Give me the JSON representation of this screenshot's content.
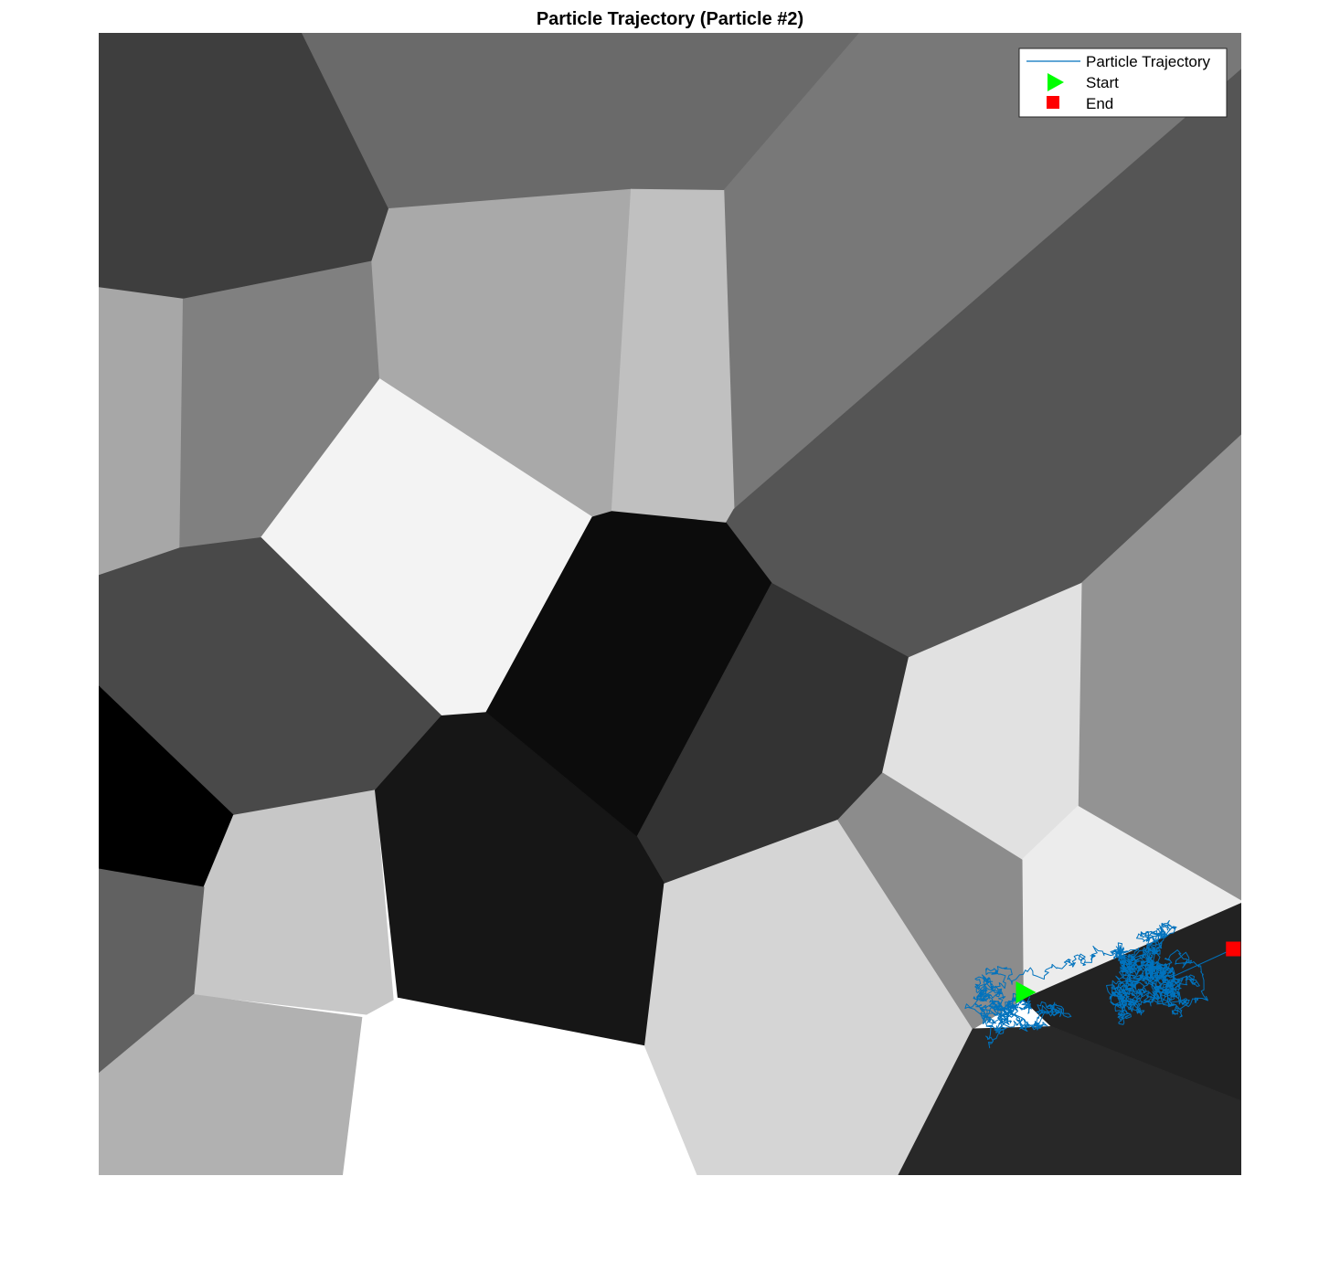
{
  "chart_data": {
    "type": "line",
    "title": "Particle Trajectory (Particle #2)",
    "xlabel": "",
    "ylabel": "",
    "xlim": [
      0,
      1
    ],
    "ylim": [
      0,
      1
    ],
    "axes_visible": false,
    "grid": false,
    "background": "grayscale Voronoi grain map",
    "legend_placement": "top-right",
    "colors": {
      "trajectory": "#0072BD",
      "start": "#00FF00",
      "end": "#FF0000"
    },
    "series": [
      {
        "name": "Particle Trajectory",
        "style": "line",
        "walk_seed": 2
      },
      {
        "name": "Start",
        "style": "triangle-right-marker",
        "x": 0.81,
        "y": 0.16
      },
      {
        "name": "End",
        "style": "square-marker",
        "x": 0.993,
        "y": 0.198
      }
    ],
    "grains": [
      {
        "shade": "#3e3e3e",
        "pts": [
          [
            0,
            1
          ],
          [
            0.178,
            1
          ],
          [
            0.254,
            0.846
          ],
          [
            0.239,
            0.8
          ],
          [
            0.074,
            0.767
          ],
          [
            0,
            0.777
          ]
        ]
      },
      {
        "shade": "#6a6a6a",
        "pts": [
          [
            0.178,
            1
          ],
          [
            0.666,
            1
          ],
          [
            0.547,
            0.862
          ],
          [
            0.456,
            0.862
          ],
          [
            0.254,
            0.846
          ]
        ]
      },
      {
        "shade": "#787878",
        "pts": [
          [
            0.666,
            1
          ],
          [
            1,
            1
          ],
          [
            1,
            0.968
          ],
          [
            0.556,
            0.583
          ],
          [
            0.547,
            0.862
          ]
        ]
      },
      {
        "shade": "#a7a7a7",
        "pts": [
          [
            0,
            0.777
          ],
          [
            0.074,
            0.767
          ],
          [
            0.071,
            0.549
          ],
          [
            0,
            0.525
          ]
        ]
      },
      {
        "shade": "#808080",
        "pts": [
          [
            0.074,
            0.767
          ],
          [
            0.239,
            0.8
          ],
          [
            0.246,
            0.697
          ],
          [
            0.142,
            0.558
          ],
          [
            0.071,
            0.549
          ]
        ]
      },
      {
        "shade": "#a9a9a9",
        "pts": [
          [
            0.254,
            0.846
          ],
          [
            0.466,
            0.863
          ],
          [
            0.449,
            0.581
          ],
          [
            0.432,
            0.576
          ],
          [
            0.246,
            0.697
          ],
          [
            0.239,
            0.8
          ]
        ]
      },
      {
        "shade": "#c0c0c0",
        "pts": [
          [
            0.466,
            0.863
          ],
          [
            0.547,
            0.862
          ],
          [
            0.556,
            0.583
          ],
          [
            0.549,
            0.571
          ],
          [
            0.449,
            0.581
          ]
        ]
      },
      {
        "shade": "#555555",
        "pts": [
          [
            1,
            0.968
          ],
          [
            1,
            0.648
          ],
          [
            0.86,
            0.518
          ],
          [
            0.709,
            0.453
          ],
          [
            0.589,
            0.518
          ],
          [
            0.549,
            0.571
          ],
          [
            0.556,
            0.583
          ]
        ]
      },
      {
        "shade": "#939393",
        "pts": [
          [
            1,
            0.648
          ],
          [
            1,
            0.24
          ],
          [
            0.857,
            0.323
          ],
          [
            0.86,
            0.518
          ]
        ]
      },
      {
        "shade": "#f3f3f3",
        "pts": [
          [
            0.246,
            0.697
          ],
          [
            0.432,
            0.576
          ],
          [
            0.339,
            0.405
          ],
          [
            0.3,
            0.402
          ],
          [
            0.142,
            0.558
          ]
        ]
      },
      {
        "shade": "#0c0c0c",
        "pts": [
          [
            0.432,
            0.576
          ],
          [
            0.449,
            0.581
          ],
          [
            0.549,
            0.571
          ],
          [
            0.589,
            0.518
          ],
          [
            0.471,
            0.296
          ],
          [
            0.339,
            0.405
          ]
        ]
      },
      {
        "shade": "#333333",
        "pts": [
          [
            0.589,
            0.518
          ],
          [
            0.709,
            0.453
          ],
          [
            0.686,
            0.352
          ],
          [
            0.647,
            0.311
          ],
          [
            0.495,
            0.255
          ],
          [
            0.471,
            0.296
          ]
        ]
      },
      {
        "shade": "#e1e1e1",
        "pts": [
          [
            0.709,
            0.453
          ],
          [
            0.86,
            0.518
          ],
          [
            0.857,
            0.323
          ],
          [
            0.808,
            0.276
          ],
          [
            0.686,
            0.352
          ]
        ]
      },
      {
        "shade": "#ececec",
        "pts": [
          [
            0.857,
            0.323
          ],
          [
            1,
            0.24
          ],
          [
            1,
            0.238
          ],
          [
            0.809,
            0.154
          ],
          [
            0.808,
            0.276
          ]
        ]
      },
      {
        "shade": "#494949",
        "pts": [
          [
            0,
            0.525
          ],
          [
            0.071,
            0.549
          ],
          [
            0.142,
            0.558
          ],
          [
            0.3,
            0.402
          ],
          [
            0.242,
            0.337
          ],
          [
            0.118,
            0.315
          ],
          [
            0,
            0.428
          ]
        ]
      },
      {
        "shade": "#000000",
        "pts": [
          [
            0,
            0.428
          ],
          [
            0.118,
            0.315
          ],
          [
            0.092,
            0.252
          ],
          [
            0,
            0.268
          ]
        ]
      },
      {
        "shade": "#c7c7c7",
        "pts": [
          [
            0.118,
            0.315
          ],
          [
            0.242,
            0.337
          ],
          [
            0.259,
            0.138
          ],
          [
            0.083,
            0.158
          ],
          [
            0.092,
            0.252
          ]
        ]
      },
      {
        "shade": "#616161",
        "pts": [
          [
            0,
            0.268
          ],
          [
            0.092,
            0.252
          ],
          [
            0.083,
            0.158
          ],
          [
            0,
            0.089
          ]
        ]
      },
      {
        "shade": "#161616",
        "pts": [
          [
            0.242,
            0.337
          ],
          [
            0.3,
            0.402
          ],
          [
            0.339,
            0.405
          ],
          [
            0.471,
            0.296
          ],
          [
            0.495,
            0.255
          ],
          [
            0.478,
            0.113
          ],
          [
            0.262,
            0.155
          ]
        ]
      },
      {
        "shade": "#b1b1b1",
        "pts": [
          [
            0,
            0.089
          ],
          [
            0.083,
            0.158
          ],
          [
            0.231,
            0.138
          ],
          [
            0.214,
            0
          ],
          [
            0,
            0
          ]
        ]
      },
      {
        "shade": "#ffffff",
        "pts": [
          [
            0.231,
            0.138
          ],
          [
            0.262,
            0.155
          ],
          [
            0.478,
            0.113
          ],
          [
            0.524,
            0
          ],
          [
            0.214,
            0
          ]
        ]
      },
      {
        "shade": "#d5d5d5",
        "pts": [
          [
            0.478,
            0.113
          ],
          [
            0.495,
            0.255
          ],
          [
            0.647,
            0.311
          ],
          [
            0.765,
            0.128
          ],
          [
            0.7,
            0
          ],
          [
            0.524,
            0
          ]
        ]
      },
      {
        "shade": "#8c8c8c",
        "pts": [
          [
            0.647,
            0.311
          ],
          [
            0.686,
            0.352
          ],
          [
            0.808,
            0.276
          ],
          [
            0.809,
            0.154
          ],
          [
            0.765,
            0.128
          ]
        ]
      },
      {
        "shade": "#222222",
        "pts": [
          [
            0.809,
            0.154
          ],
          [
            1,
            0.238
          ],
          [
            1,
            0.065
          ],
          [
            0.834,
            0.13
          ]
        ]
      },
      {
        "shade": "#282828",
        "pts": [
          [
            0.765,
            0.128
          ],
          [
            0.834,
            0.13
          ],
          [
            1,
            0.065
          ],
          [
            1,
            0
          ],
          [
            0.7,
            0
          ]
        ]
      }
    ]
  }
}
